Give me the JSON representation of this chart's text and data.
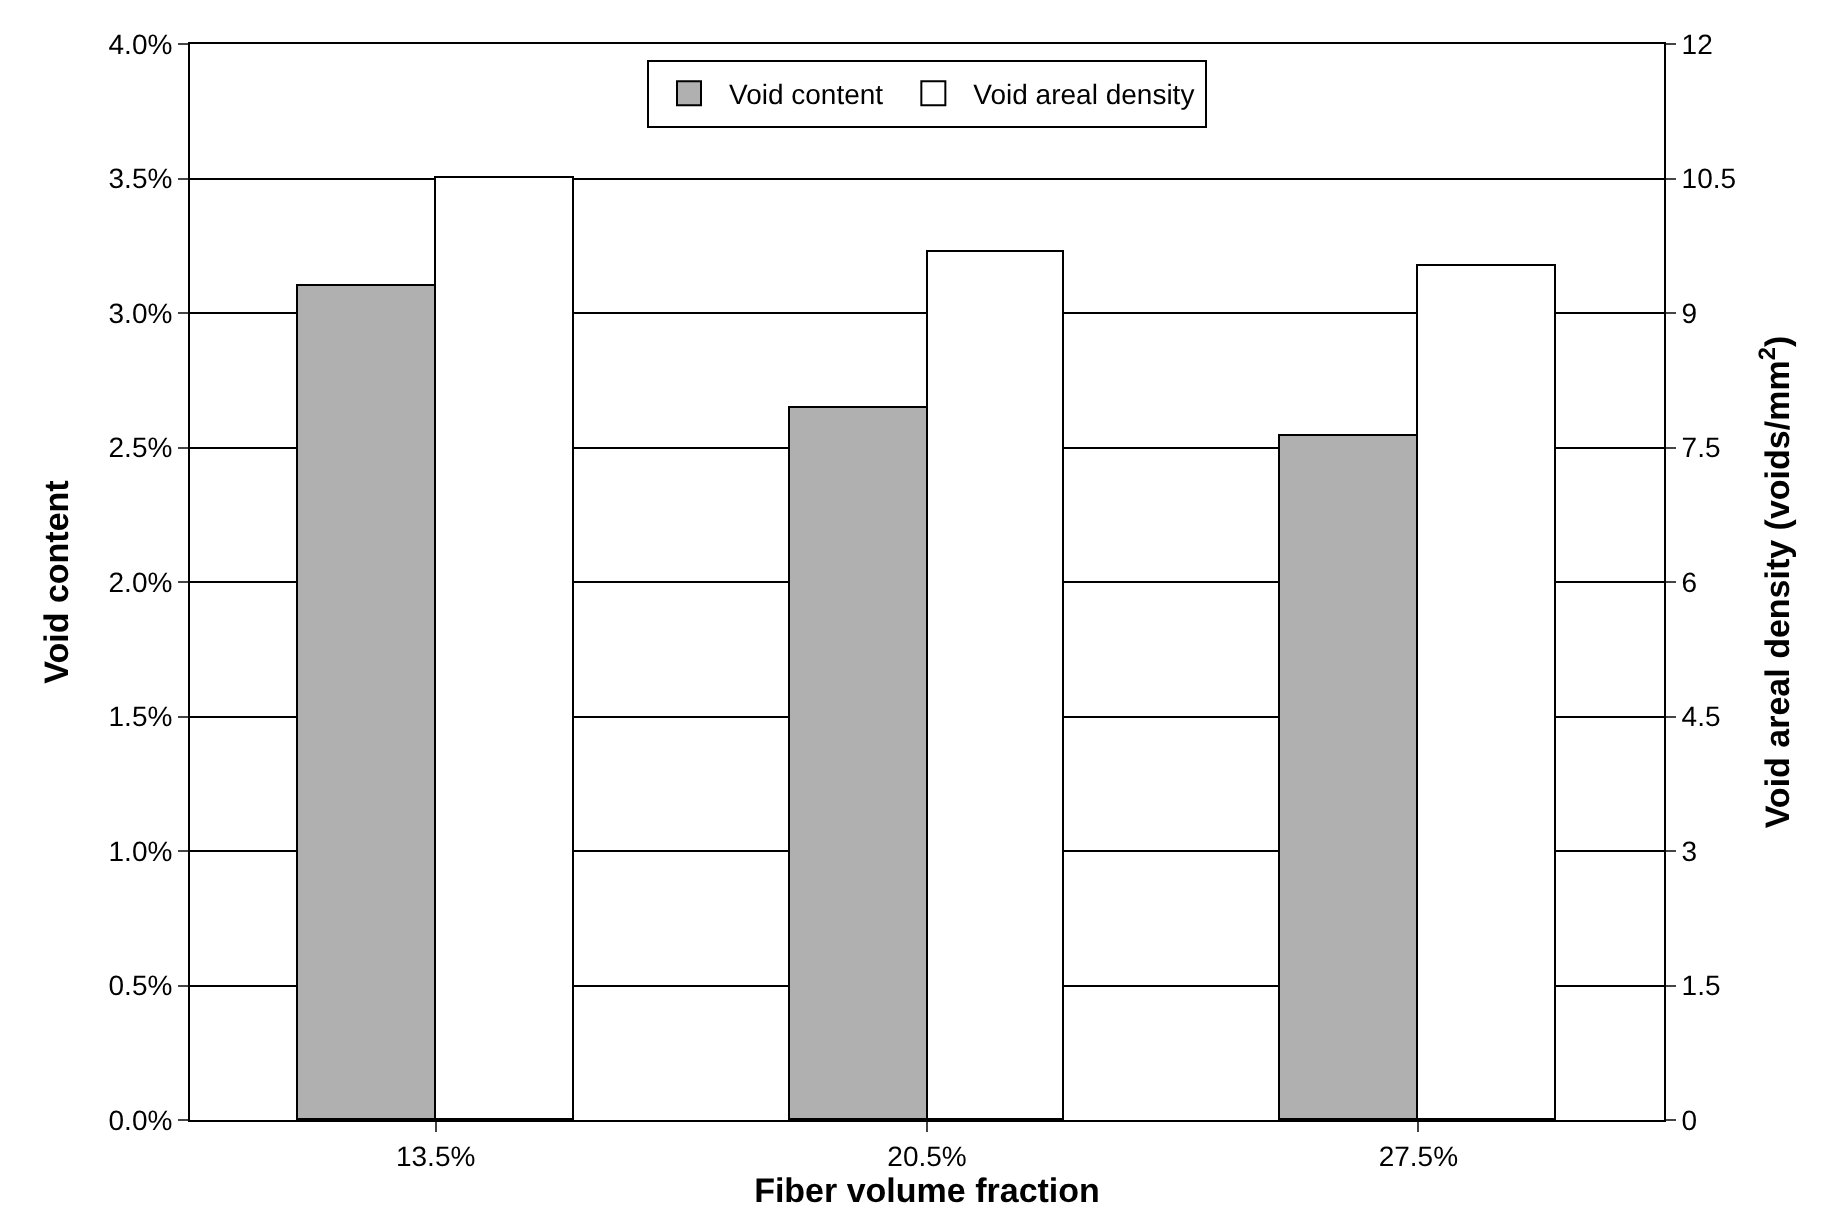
{
  "chart_data": {
    "type": "bar",
    "xlabel": "Fiber volume fraction",
    "ylabel": "Void content",
    "y2label": "Void areal density (voids/mm$^{2}$)",
    "categories": [
      "13.5%",
      "20.5%",
      "27.5%"
    ],
    "series": [
      {
        "name": "Void content",
        "color": "#b0b0b0",
        "values": [
          3.1,
          2.65,
          2.54
        ]
      },
      {
        "name": "Void areal density",
        "color": "#ffffff",
        "axis": "y2",
        "values": [
          10.5,
          9.67,
          9.53
        ]
      }
    ],
    "ylim": [
      0,
      4.0
    ],
    "yticks": [
      {
        "value": 0,
        "label": "0.0%"
      },
      {
        "value": 0.5,
        "label": "0.5%"
      },
      {
        "value": 1.0,
        "label": "1.0%"
      },
      {
        "value": 1.5,
        "label": "1.5%"
      },
      {
        "value": 2.0,
        "label": "2.0%"
      },
      {
        "value": 2.5,
        "label": "2.5%"
      },
      {
        "value": 3.0,
        "label": "3.0%"
      },
      {
        "value": 3.5,
        "label": "3.5%"
      },
      {
        "value": 4.0,
        "label": "4.0%"
      }
    ],
    "y2lim": [
      0,
      12
    ],
    "y2ticks": [
      0,
      1.5,
      3,
      4.5,
      6,
      7.5,
      9,
      10.5,
      12
    ],
    "grid": "y",
    "legend": "top"
  }
}
